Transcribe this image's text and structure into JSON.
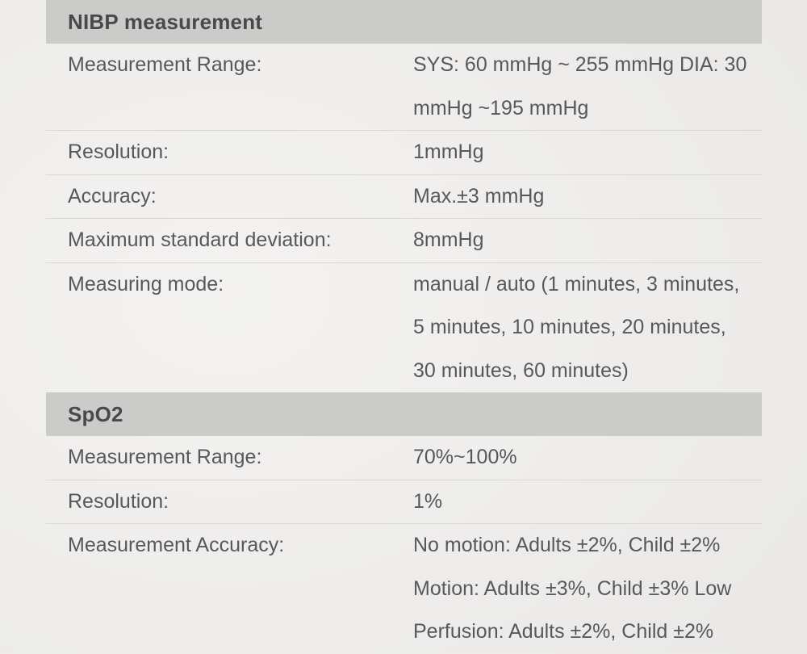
{
  "colors": {
    "page_background": "#eeedeb",
    "section_header_background": "#cbcbc9",
    "section_header_text": "#494949",
    "body_text": "#58585a",
    "divider": "#d9d8d6"
  },
  "sections": [
    {
      "title": "NIBP measurement",
      "rows": [
        {
          "label": "Measurement Range:",
          "value": "SYS: 60 mmHg ~ 255 mmHg DIA: 30\nmmHg ~195 mmHg"
        },
        {
          "label": "Resolution:",
          "value": "1mmHg"
        },
        {
          "label": "Accuracy:",
          "value": "Max.±3 mmHg"
        },
        {
          "label": "Maximum standard deviation:",
          "value": "8mmHg"
        },
        {
          "label": "Measuring mode:",
          "value": "manual / auto (1 minutes, 3 minutes,\n5 minutes, 10 minutes, 20 minutes,\n30 minutes, 60 minutes)"
        }
      ]
    },
    {
      "title": "SpO2",
      "rows": [
        {
          "label": "Measurement Range:",
          "value": "70%~100%"
        },
        {
          "label": "Resolution:",
          "value": "1%"
        },
        {
          "label": "Measurement Accuracy:",
          "value": "No motion: Adults ±2%, Child ±2%\nMotion: Adults ±3%, Child ±3% Low\nPerfusion: Adults ±2%, Child ±2%"
        }
      ]
    }
  ]
}
